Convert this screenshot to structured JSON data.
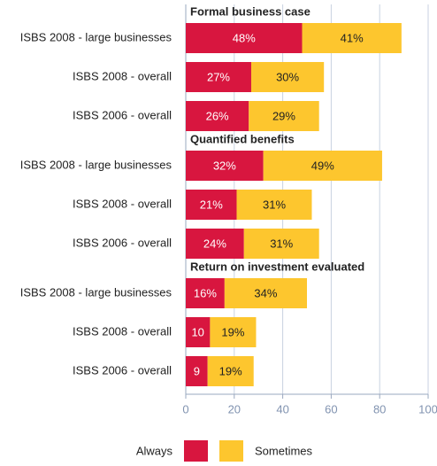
{
  "chart_data": {
    "type": "bar",
    "orientation": "horizontal",
    "groups": [
      {
        "title": "Formal business case",
        "categories": [
          "ISBS 2008 - large businesses",
          "ISBS 2008 - overall",
          "ISBS 2006 - overall"
        ]
      },
      {
        "title": "Quantified benefits",
        "categories": [
          "ISBS 2008 - large businesses",
          "ISBS 2008 - overall",
          "ISBS 2006 - overall"
        ]
      },
      {
        "title": "Return on investment evaluated",
        "categories": [
          "ISBS 2008 - large businesses",
          "ISBS 2008 - overall",
          "ISBS 2006 - overall"
        ]
      }
    ],
    "series": [
      {
        "name": "Always",
        "color": "#d8163f",
        "label_color": "#ffffff",
        "values": [
          48,
          27,
          26,
          32,
          21,
          24,
          16,
          10,
          9
        ],
        "value_labels": [
          "48%",
          "27%",
          "26%",
          "32%",
          "21%",
          "24%",
          "16%",
          "10",
          "9"
        ]
      },
      {
        "name": "Sometimes",
        "color": "#fdc62e",
        "label_color": "#222222",
        "values": [
          41,
          30,
          29,
          49,
          31,
          31,
          34,
          19,
          19
        ],
        "value_labels": [
          "41%",
          "30%",
          "29%",
          "49%",
          "31%",
          "31%",
          "34%",
          "19%",
          "19%"
        ]
      }
    ],
    "xlim": [
      0,
      100
    ],
    "xticks": [
      0,
      20,
      40,
      60,
      80,
      100
    ],
    "grid": true
  }
}
